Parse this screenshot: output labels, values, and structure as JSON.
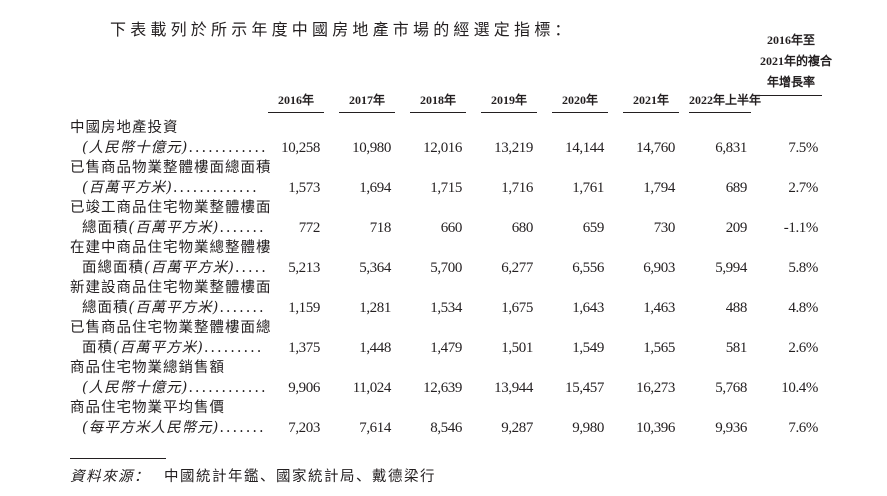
{
  "intro": "下表載列於所示年度中國房地產市場的經選定指標：",
  "columns": [
    "2016年",
    "2017年",
    "2018年",
    "2019年",
    "2020年",
    "2021年",
    "2022年上半年"
  ],
  "cagr_header": [
    "2016年至",
    "2021年的複合",
    "年增長率"
  ],
  "rows": [
    {
      "line1": "中國房地產投資",
      "line2": "",
      "unit": "(人民幣十億元)",
      "dots": "............",
      "values": [
        "10,258",
        "10,980",
        "12,016",
        "13,219",
        "14,144",
        "14,760",
        "6,831",
        "7.5%"
      ]
    },
    {
      "line1": "已售商品物業整體樓面總面積",
      "line2": "",
      "unit": "(百萬平方米)",
      "dots": ".............",
      "values": [
        "1,573",
        "1,694",
        "1,715",
        "1,716",
        "1,761",
        "1,794",
        "689",
        "2.7%"
      ]
    },
    {
      "line1": "已竣工商品住宅物業整體樓面",
      "line2": "總面積",
      "unit": "(百萬平方米)",
      "dots": ".......",
      "values": [
        "772",
        "718",
        "660",
        "680",
        "659",
        "730",
        "209",
        "-1.1%"
      ]
    },
    {
      "line1": "在建中商品住宅物業總整體樓",
      "line2": "面總面積",
      "unit": "(百萬平方米)",
      "dots": ".....",
      "values": [
        "5,213",
        "5,364",
        "5,700",
        "6,277",
        "6,556",
        "6,903",
        "5,994",
        "5.8%"
      ]
    },
    {
      "line1": "新建設商品住宅物業整體樓面",
      "line2": "總面積",
      "unit": "(百萬平方米)",
      "dots": ".......",
      "values": [
        "1,159",
        "1,281",
        "1,534",
        "1,675",
        "1,643",
        "1,463",
        "488",
        "4.8%"
      ]
    },
    {
      "line1": "已售商品住宅物業整體樓面總",
      "line2": "面積",
      "unit": "(百萬平方米)",
      "dots": ".........",
      "values": [
        "1,375",
        "1,448",
        "1,479",
        "1,501",
        "1,549",
        "1,565",
        "581",
        "2.6%"
      ]
    },
    {
      "line1": "商品住宅物業總銷售額",
      "line2": "",
      "unit": "(人民幣十億元)",
      "dots": "............",
      "values": [
        "9,906",
        "11,024",
        "12,639",
        "13,944",
        "15,457",
        "16,273",
        "5,768",
        "10.4%"
      ]
    },
    {
      "line1": "商品住宅物業平均售價",
      "line2": "",
      "unit": "(每平方米人民幣元)",
      "dots": ".......",
      "values": [
        "7,203",
        "7,614",
        "8,546",
        "9,287",
        "9,980",
        "10,396",
        "9,936",
        "7.6%"
      ]
    }
  ],
  "source": {
    "label": "資料來源：",
    "text": "中國統計年鑑、國家統計局、戴德梁行"
  }
}
